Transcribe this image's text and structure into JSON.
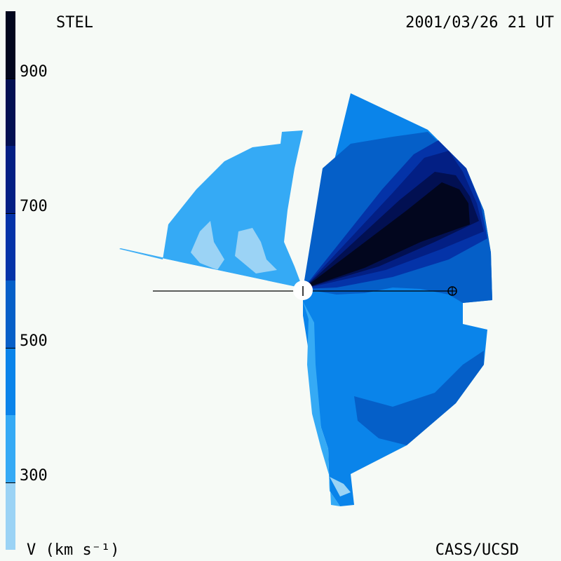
{
  "header": {
    "instrument": "STEL",
    "timestamp": "2001/03/26 21 UT"
  },
  "footer": {
    "units": "V (km s⁻¹)",
    "credit": "CASS/UCSD"
  },
  "colorbar": {
    "quantity": "solar wind velocity",
    "range": [
      200,
      1000
    ],
    "tick_values": [
      300,
      500,
      700,
      900
    ],
    "tick_labels": [
      "300",
      "500",
      "700",
      "900"
    ],
    "levels": [
      {
        "from": 200,
        "to": 300,
        "color": "#9bd3f5"
      },
      {
        "from": 300,
        "to": 400,
        "color": "#35aaf5"
      },
      {
        "from": 400,
        "to": 500,
        "color": "#0a84ea"
      },
      {
        "from": 500,
        "to": 600,
        "color": "#055fc8"
      },
      {
        "from": 600,
        "to": 700,
        "color": "#0433a8"
      },
      {
        "from": 700,
        "to": 800,
        "color": "#031f84"
      },
      {
        "from": 800,
        "to": 900,
        "color": "#021052"
      },
      {
        "from": 900,
        "to": 1000,
        "color": "#02061e"
      }
    ]
  },
  "map": {
    "center_symbol": "sun",
    "earth_symbol": "⊕"
  }
}
